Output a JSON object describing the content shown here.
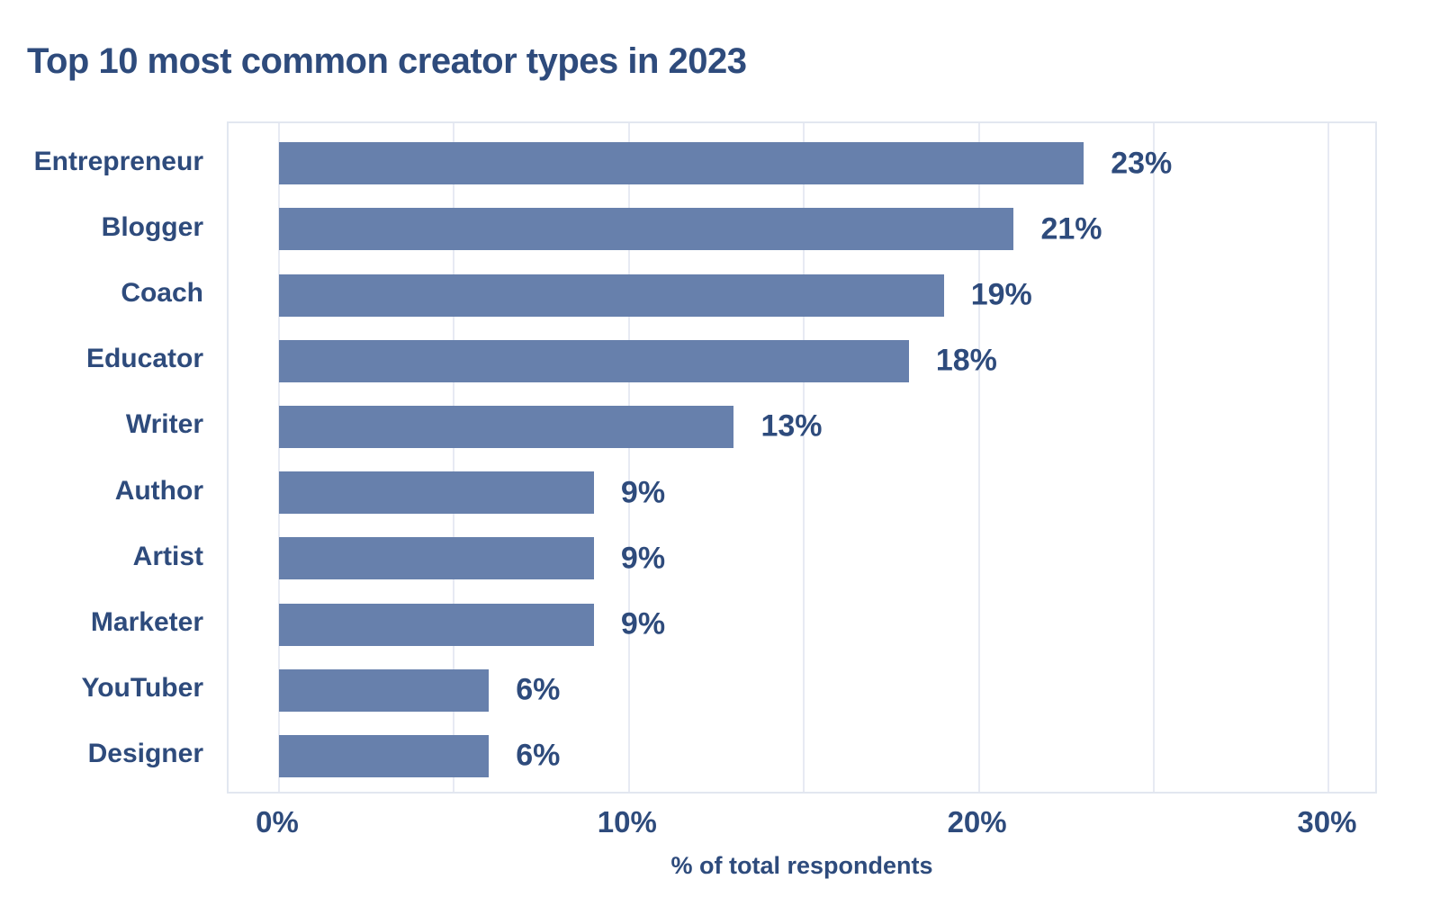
{
  "chart_data": {
    "type": "bar",
    "orientation": "horizontal",
    "title": "Top 10 most common creator types in 2023",
    "categories": [
      "Entrepreneur",
      "Blogger",
      "Coach",
      "Educator",
      "Writer",
      "Author",
      "Artist",
      "Marketer",
      "YouTuber",
      "Designer"
    ],
    "values": [
      23,
      21,
      19,
      18,
      13,
      9,
      9,
      9,
      6,
      6
    ],
    "value_labels": [
      "23%",
      "21%",
      "19%",
      "18%",
      "13%",
      "9%",
      "9%",
      "9%",
      "6%",
      "6%"
    ],
    "xlabel": "% of total respondents",
    "ylabel": "",
    "x_ticks": [
      {
        "value": 0,
        "label": "0%"
      },
      {
        "value": 10,
        "label": "10%"
      },
      {
        "value": 20,
        "label": "20%"
      },
      {
        "value": 30,
        "label": "30%"
      }
    ],
    "x_gridline_step": 5,
    "xlim": [
      0,
      31.4
    ],
    "grid": true,
    "legend_position": "none",
    "colors": {
      "bar": "#6780ac",
      "text": "#2e4b7c",
      "gridline": "#e7eaf3",
      "plot_border": "#e2e7f0",
      "background": "#ffffff"
    }
  }
}
